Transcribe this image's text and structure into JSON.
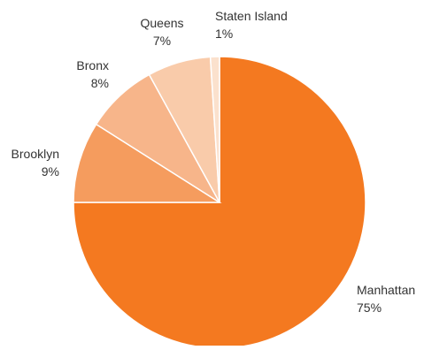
{
  "chart_data": {
    "type": "pie",
    "title": "",
    "slices": [
      {
        "label": "Manhattan",
        "value": 75,
        "value_label": "75%",
        "color": "#f47920"
      },
      {
        "label": "Brooklyn",
        "value": 9,
        "value_label": "9%",
        "color": "#f59c5e"
      },
      {
        "label": "Bronx",
        "value": 8,
        "value_label": "8%",
        "color": "#f7b58a"
      },
      {
        "label": "Queens",
        "value": 7,
        "value_label": "7%",
        "color": "#f9cbaa"
      },
      {
        "label": "Staten Island",
        "value": 1,
        "value_label": "1%",
        "color": "#fbe1cd"
      }
    ],
    "legend": "none",
    "start_angle": "12 o'clock, clockwise"
  }
}
